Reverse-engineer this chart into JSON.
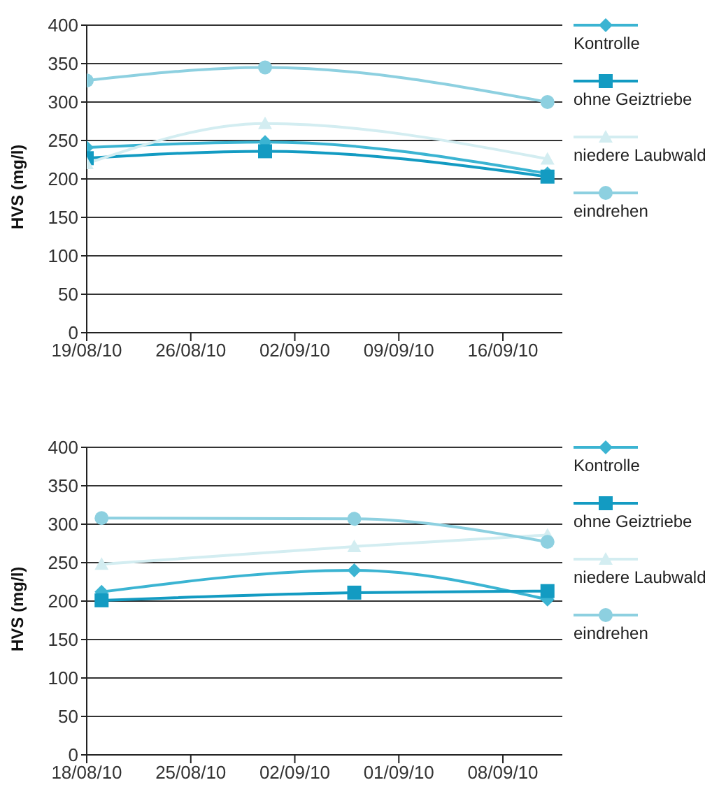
{
  "chart_data": [
    {
      "type": "line",
      "ylabel": "HVS (mg/l)",
      "x": [
        "--08-19",
        "--08-31",
        "--09-19"
      ],
      "xlim": [
        "--08-19",
        "--09-20"
      ],
      "xticks": [
        {
          "value": "--08-19",
          "label": "19/08/10"
        },
        {
          "value": "--08-26",
          "label": "26/08/10"
        },
        {
          "value": "--09-02",
          "label": "02/09/10"
        },
        {
          "value": "--09-09",
          "label": "09/09/10"
        },
        {
          "value": "--09-16",
          "label": "16/09/10"
        }
      ],
      "ylim": [
        0,
        400
      ],
      "yticks": [
        0,
        50,
        100,
        150,
        200,
        250,
        300,
        350,
        400
      ],
      "grid": "y",
      "legend": "right",
      "series": [
        {
          "name": "Kontrolle",
          "color": "#3bb4d2",
          "marker": "diamond",
          "values": [
            241,
            248,
            207
          ]
        },
        {
          "name": "ohne Geiztriebe",
          "color": "#139bc2",
          "marker": "square",
          "values": [
            227,
            236,
            203
          ]
        },
        {
          "name": "niedere Laubwald",
          "color": "#d3edf1",
          "marker": "triangle",
          "values": [
            220,
            272,
            226
          ]
        },
        {
          "name": "eindrehen",
          "color": "#8dd0e0",
          "marker": "circle",
          "values": [
            328,
            345,
            300
          ]
        }
      ]
    },
    {
      "type": "line",
      "ylabel": "HVS (mg/l)",
      "x": [
        "--08-19",
        "--09-05",
        "--09-18"
      ],
      "xlim": [
        "--08-18",
        "--09-19"
      ],
      "xticks": [
        {
          "value": "--08-18",
          "label": "18/08/10"
        },
        {
          "value": "--08-25",
          "label": "25/08/10"
        },
        {
          "value": "--09-01",
          "label": "02/09/10"
        },
        {
          "value": "--09-08",
          "label": "01/09/10"
        },
        {
          "value": "--09-15",
          "label": "08/09/10"
        }
      ],
      "ylim": [
        0,
        400
      ],
      "yticks": [
        0,
        50,
        100,
        150,
        200,
        250,
        300,
        350,
        400
      ],
      "grid": "y",
      "legend": "right",
      "series": [
        {
          "name": "Kontrolle",
          "color": "#3bb4d2",
          "marker": "diamond",
          "values": [
            212,
            240,
            202
          ]
        },
        {
          "name": "ohne Geiztriebe",
          "color": "#139bc2",
          "marker": "square",
          "values": [
            201,
            211,
            213
          ]
        },
        {
          "name": "niedere Laubwald",
          "color": "#d3edf1",
          "marker": "triangle",
          "values": [
            248,
            271,
            286
          ]
        },
        {
          "name": "eindrehen",
          "color": "#8dd0e0",
          "marker": "circle",
          "values": [
            308,
            307,
            277
          ]
        }
      ]
    }
  ]
}
